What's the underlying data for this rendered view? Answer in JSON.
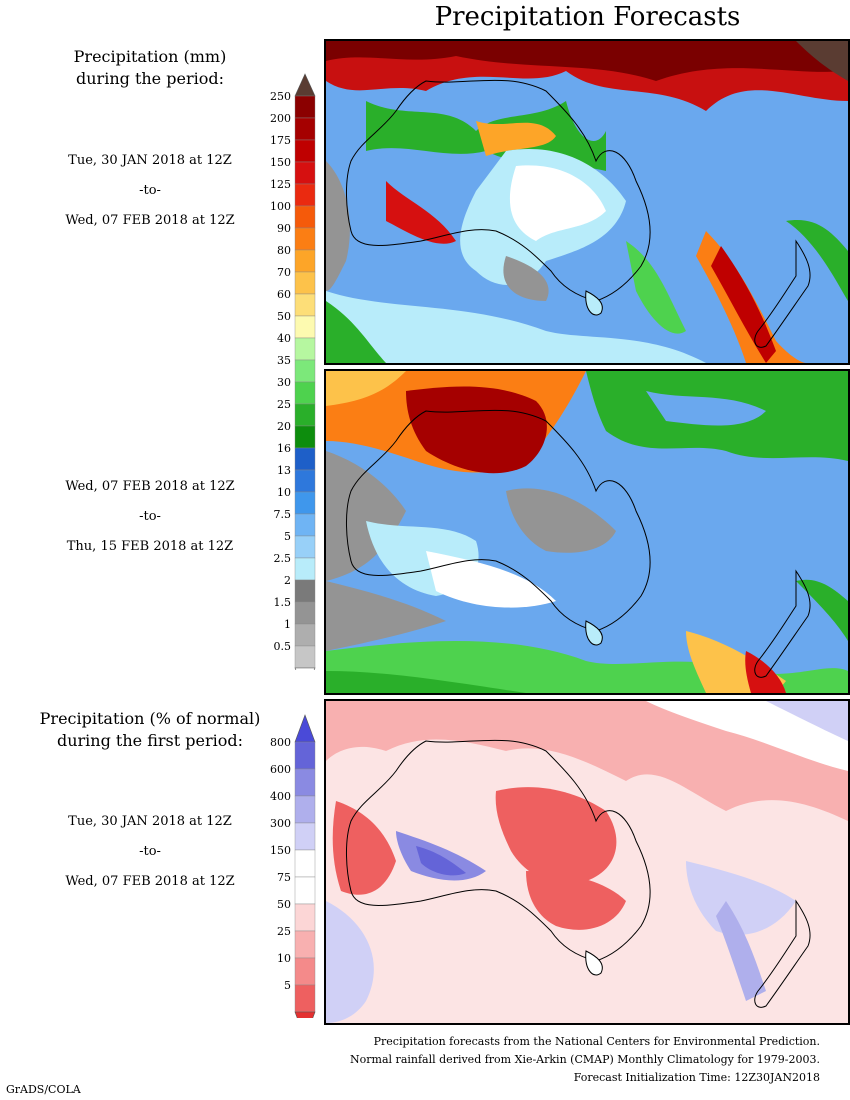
{
  "title": "Precipitation Forecasts",
  "section_mm": {
    "title_line1": "Precipitation (mm)",
    "title_line2": "during the period:"
  },
  "period1": {
    "start": "Tue, 30 JAN 2018 at 12Z",
    "sep": "-to-",
    "end": "Wed, 07 FEB 2018 at 12Z"
  },
  "period2": {
    "start": "Wed, 07 FEB 2018 at 12Z",
    "sep": "-to-",
    "end": "Thu, 15 FEB 2018 at 12Z"
  },
  "section_pct": {
    "title_line1": "Precipitation (% of normal)",
    "title_line2": "during the first period:"
  },
  "period3": {
    "start": "Tue, 30 JAN 2018 at 12Z",
    "sep": "-to-",
    "end": "Wed, 07 FEB 2018 at 12Z"
  },
  "legend_mm": {
    "labels": [
      "250",
      "200",
      "175",
      "150",
      "125",
      "100",
      "90",
      "80",
      "70",
      "60",
      "50",
      "40",
      "35",
      "30",
      "25",
      "20",
      "16",
      "13",
      "10",
      "7.5",
      "5",
      "2.5",
      "2",
      "1.5",
      "1",
      "0.5"
    ],
    "top_cap_color": "#5a3c32",
    "colors": [
      "#8b0000",
      "#a50000",
      "#bf0000",
      "#d61010",
      "#ea2a10",
      "#f55a0a",
      "#fb7e14",
      "#fda528",
      "#fdc24a",
      "#fdde78",
      "#fdfab0",
      "#b6f7a0",
      "#7ce87a",
      "#4ed24e",
      "#2aaf2a",
      "#0d8d0d",
      "#1e5fc8",
      "#2e78dc",
      "#3f97ec",
      "#6fb4f4",
      "#98d0f8",
      "#b8ecfa",
      "#7a7a7a",
      "#949494",
      "#aeaeae",
      "#c6c6c6"
    ]
  },
  "legend_pct": {
    "labels": [
      "800",
      "600",
      "400",
      "300",
      "150",
      "75",
      "50",
      "25",
      "10",
      "5"
    ],
    "top_cap_color": "#4a4ad8",
    "bottom_cap_color": "#e43030",
    "colors": [
      "#6464d8",
      "#8a8ae2",
      "#afafec",
      "#d0d0f6",
      "#ffffff",
      "#ffffff",
      "#fcd6d6",
      "#f8b0b0",
      "#f48a8a",
      "#ee6060"
    ]
  },
  "footer": {
    "line1": "Precipitation forecasts from the National Centers for Environmental Prediction.",
    "line2": "Normal rainfall derived from Xie-Arkin (CMAP) Monthly Climatology for 1979-2003.",
    "line3": "Forecast Initialization Time: 12Z30JAN2018"
  },
  "credit": "GrADS/COLA"
}
